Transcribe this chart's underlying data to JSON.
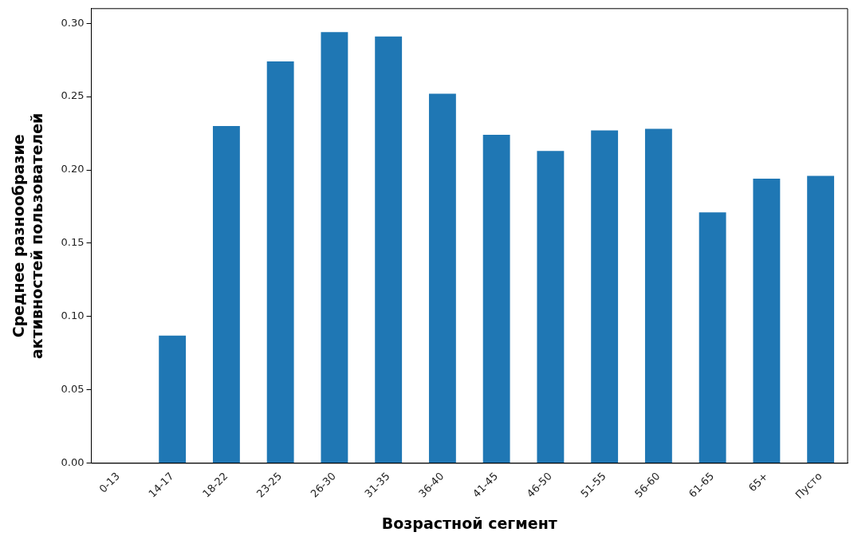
{
  "chart_data": {
    "type": "bar",
    "xlabel": "Возрастной сегмент",
    "ylabel": "Среднее разнообразие\nактивностей пользователей",
    "categories": [
      "0-13",
      "14-17",
      "18-22",
      "23-25",
      "26-30",
      "31-35",
      "36-40",
      "41-45",
      "46-50",
      "51-55",
      "56-60",
      "61-65",
      "65+",
      "Пусто"
    ],
    "values": [
      0,
      0.087,
      0.23,
      0.274,
      0.294,
      0.291,
      0.252,
      0.224,
      0.213,
      0.227,
      0.228,
      0.171,
      0.194,
      0.196
    ],
    "color": "#1f77b4",
    "ylim": [
      0,
      0.31
    ],
    "yticks": [
      {
        "value": 0,
        "label": "0.00"
      },
      {
        "value": 0.05,
        "label": "0.05"
      },
      {
        "value": 0.1,
        "label": "0.10"
      },
      {
        "value": 0.15,
        "label": "0.15"
      },
      {
        "value": 0.2,
        "label": "0.20"
      },
      {
        "value": 0.25,
        "label": "0.25"
      },
      {
        "value": 0.3,
        "label": "0.30"
      }
    ],
    "grid": false,
    "legend": false
  }
}
